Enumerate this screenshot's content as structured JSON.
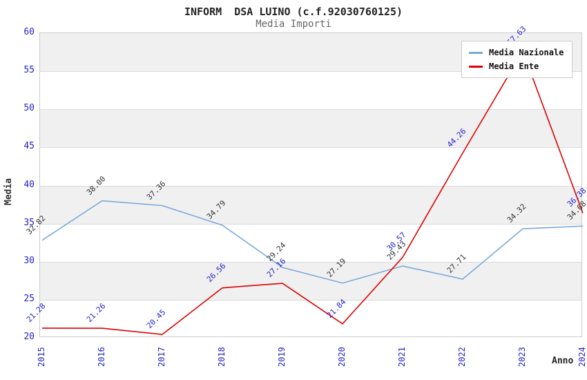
{
  "chart_data": {
    "type": "line",
    "title": "INFORM  DSA LUINO (c.f.92030760125)",
    "subtitle": "Media Importi",
    "xlabel": "Anno",
    "ylabel": "Media",
    "ylim": [
      20,
      60
    ],
    "ytick_step": 5,
    "yticks": [
      20,
      25,
      30,
      35,
      40,
      45,
      50,
      55,
      60
    ],
    "categories": [
      "2015",
      "2016",
      "2017",
      "2018",
      "2019",
      "2020",
      "2021",
      "2022",
      "2023",
      "2024"
    ],
    "series": [
      {
        "name": "Media Nazionale",
        "color": "#7aa8dc",
        "label_color": "#333333",
        "values": [
          32.82,
          38.0,
          37.36,
          34.79,
          29.24,
          27.19,
          29.43,
          27.71,
          34.32,
          34.68
        ]
      },
      {
        "name": "Media Ente",
        "color": "#dd0000",
        "label_color": "#2222cc",
        "values": [
          21.28,
          21.26,
          20.45,
          26.56,
          27.16,
          21.84,
          30.57,
          44.26,
          57.63,
          36.38
        ]
      }
    ],
    "legend_position": "top-right",
    "grid": "horizontal-bands",
    "band_color": "#f0f0f0",
    "tick_color": "#2222cc"
  }
}
